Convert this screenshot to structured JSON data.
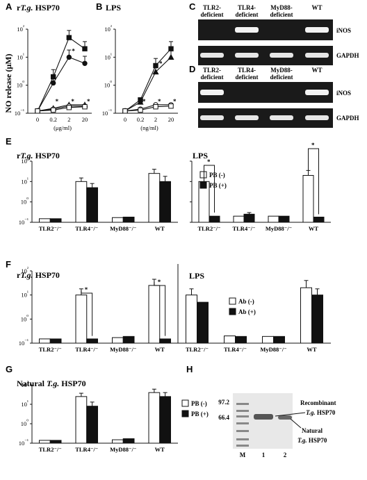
{
  "figure": {
    "panel_letters": [
      "A",
      "B",
      "C",
      "D",
      "E",
      "F",
      "G",
      "H"
    ],
    "y_axis_label": "NO release (μM)",
    "star": "*"
  },
  "chart_data": [
    {
      "id": "A",
      "type": "line",
      "title": "rT.g. HSP70",
      "title_prefix": "r",
      "title_italic": "T.g.",
      "title_suffix": " HSP70",
      "xlabel": "(μg/ml)",
      "ylabel": "NO release (μM)",
      "yscale": "log",
      "ylim": [
        0.1,
        100
      ],
      "yticks": [
        "10⁻¹",
        "10⁰",
        "10¹",
        "10²"
      ],
      "categories": [
        "0",
        "0.2",
        "2",
        "20"
      ],
      "series": [
        {
          "values": [
            0.12,
            2.0,
            50,
            20
          ],
          "marker": "square-filled"
        },
        {
          "values": [
            0.12,
            1.2,
            10,
            6
          ],
          "marker": "circle-filled"
        },
        {
          "values": [
            0.12,
            0.15,
            0.2,
            0.2
          ],
          "marker": "triangle-open"
        },
        {
          "values": [
            0.12,
            0.14,
            0.18,
            0.18
          ],
          "marker": "circle-open"
        },
        {
          "values": [
            0.12,
            0.13,
            0.16,
            0.17
          ],
          "marker": "square-open"
        }
      ]
    },
    {
      "id": "B",
      "type": "line",
      "title": "LPS",
      "xlabel": "(ng/ml)",
      "yscale": "log",
      "ylim": [
        0.1,
        100
      ],
      "categories": [
        "0",
        "0.2",
        "2",
        "20"
      ],
      "series": [
        {
          "values": [
            0.12,
            0.3,
            5,
            20
          ],
          "marker": "square-filled"
        },
        {
          "values": [
            0.12,
            0.25,
            3,
            10
          ],
          "marker": "triangle-filled"
        },
        {
          "values": [
            0.12,
            0.14,
            0.2,
            0.2
          ],
          "marker": "circle-open"
        },
        {
          "values": [
            0.12,
            0.13,
            0.17,
            0.18
          ],
          "marker": "square-open"
        }
      ]
    },
    {
      "id": "E",
      "type": "bar",
      "yscale": "log",
      "ylim": [
        0.1,
        100
      ],
      "yticks": [
        "10⁻¹",
        "10⁰",
        "10¹",
        "10²"
      ],
      "panels": [
        {
          "title_prefix": "r",
          "title_italic": "T.g.",
          "title_suffix": " HSP70",
          "categories": [
            "TLR2⁻/⁻",
            "TLR4⁻/⁻",
            "MyD88⁻/⁻",
            "WT"
          ],
          "series": [
            {
              "name": "PB (-)",
              "values": [
                0.15,
                10,
                0.17,
                25
              ]
            },
            {
              "name": "PB (+)",
              "values": [
                0.15,
                5,
                0.18,
                10
              ]
            }
          ],
          "errors": [
            [
              0,
              0
            ],
            [
              5,
              3
            ],
            [
              0,
              0
            ],
            [
              15,
              8
            ]
          ]
        },
        {
          "title": "LPS",
          "categories": [
            "TLR2⁻/⁻",
            "TLR4⁻/⁻",
            "MyD88⁻/⁻",
            "WT"
          ],
          "series": [
            {
              "name": "PB (-)",
              "values": [
                10,
                0.2,
                0.2,
                20
              ]
            },
            {
              "name": "PB (+)",
              "values": [
                0.2,
                0.25,
                0.2,
                0.18
              ]
            }
          ],
          "errors": [
            [
              6,
              0
            ],
            [
              0,
              0.05
            ],
            [
              0,
              0
            ],
            [
              15,
              0
            ]
          ]
        }
      ],
      "legend": [
        "PB (-)",
        "PB (+)"
      ]
    },
    {
      "id": "F",
      "type": "bar",
      "yscale": "log",
      "ylim": [
        0.1,
        100
      ],
      "yticks": [
        "10⁻¹",
        "10⁰",
        "10¹",
        "10²"
      ],
      "panels": [
        {
          "title_prefix": "r",
          "title_italic": "T.g.",
          "title_suffix": " HSP70",
          "categories": [
            "TLR2⁻/⁻",
            "TLR4⁻/⁻",
            "MyD88⁻/⁻",
            "WT"
          ],
          "series": [
            {
              "name": "Ab (-)",
              "values": [
                0.15,
                10,
                0.17,
                25
              ]
            },
            {
              "name": "Ab (+)",
              "values": [
                0.15,
                0.15,
                0.19,
                0.15
              ]
            }
          ],
          "errors": [
            [
              0,
              0
            ],
            [
              8,
              0
            ],
            [
              0,
              0
            ],
            [
              20,
              0
            ]
          ]
        },
        {
          "title": "LPS",
          "categories": [
            "TLR2⁻/⁻",
            "TLR4⁻/⁻",
            "MyD88⁻/⁻",
            "WT"
          ],
          "series": [
            {
              "name": "Ab (-)",
              "values": [
                10,
                0.2,
                0.19,
                20
              ]
            },
            {
              "name": "Ab (+)",
              "values": [
                5,
                0.19,
                0.19,
                10
              ]
            }
          ],
          "errors": [
            [
              8,
              0
            ],
            [
              0,
              0
            ],
            [
              0,
              0
            ],
            [
              20,
              8
            ]
          ]
        }
      ],
      "legend": [
        "Ab (-)",
        "Ab (+)"
      ]
    },
    {
      "id": "G",
      "type": "bar",
      "yscale": "log",
      "ylim": [
        0.1,
        100
      ],
      "title_prefix": "Natural ",
      "title_italic": "T.g.",
      "title_suffix": " HSP70",
      "yticks": [
        "10⁻¹",
        "10⁰",
        "10¹",
        "10²"
      ],
      "categories": [
        "TLR2⁻/⁻",
        "TLR4⁻/⁻",
        "MyD88⁻/⁻",
        "WT"
      ],
      "series": [
        {
          "name": "PB (-)",
          "values": [
            0.14,
            25,
            0.15,
            40
          ]
        },
        {
          "name": "PB (+)",
          "values": [
            0.14,
            8,
            0.17,
            25
          ]
        }
      ],
      "errors": [
        [
          0,
          0
        ],
        [
          12,
          5
        ],
        [
          0,
          0
        ],
        [
          20,
          15
        ]
      ],
      "legend": [
        "PB (-)",
        "PB (+)"
      ]
    }
  ],
  "gels": {
    "lanes": [
      "TLR2-\ndeficient",
      "TLR4-\ndeficient",
      "MyD88-\ndeficient",
      "WT"
    ],
    "lane_lines": [
      [
        "TLR2-",
        "deficient"
      ],
      [
        "TLR4-",
        "deficient"
      ],
      [
        "MyD88-",
        "deficient"
      ],
      [
        "WT",
        ""
      ]
    ],
    "bands": [
      "iNOS",
      "GAPDH"
    ],
    "C_inos_present": [
      false,
      true,
      false,
      true
    ],
    "D_inos_present": [
      true,
      false,
      false,
      true
    ]
  },
  "panelH": {
    "markers": [
      "97.2",
      "66.4"
    ],
    "lanes": [
      "M",
      "1",
      "2"
    ],
    "label1": "Recombinant",
    "label1b_italic": "T.g.",
    "label1b": " HSP70",
    "label2": "Natural",
    "label2b_italic": "T.g.",
    "label2b": " HSP70"
  }
}
